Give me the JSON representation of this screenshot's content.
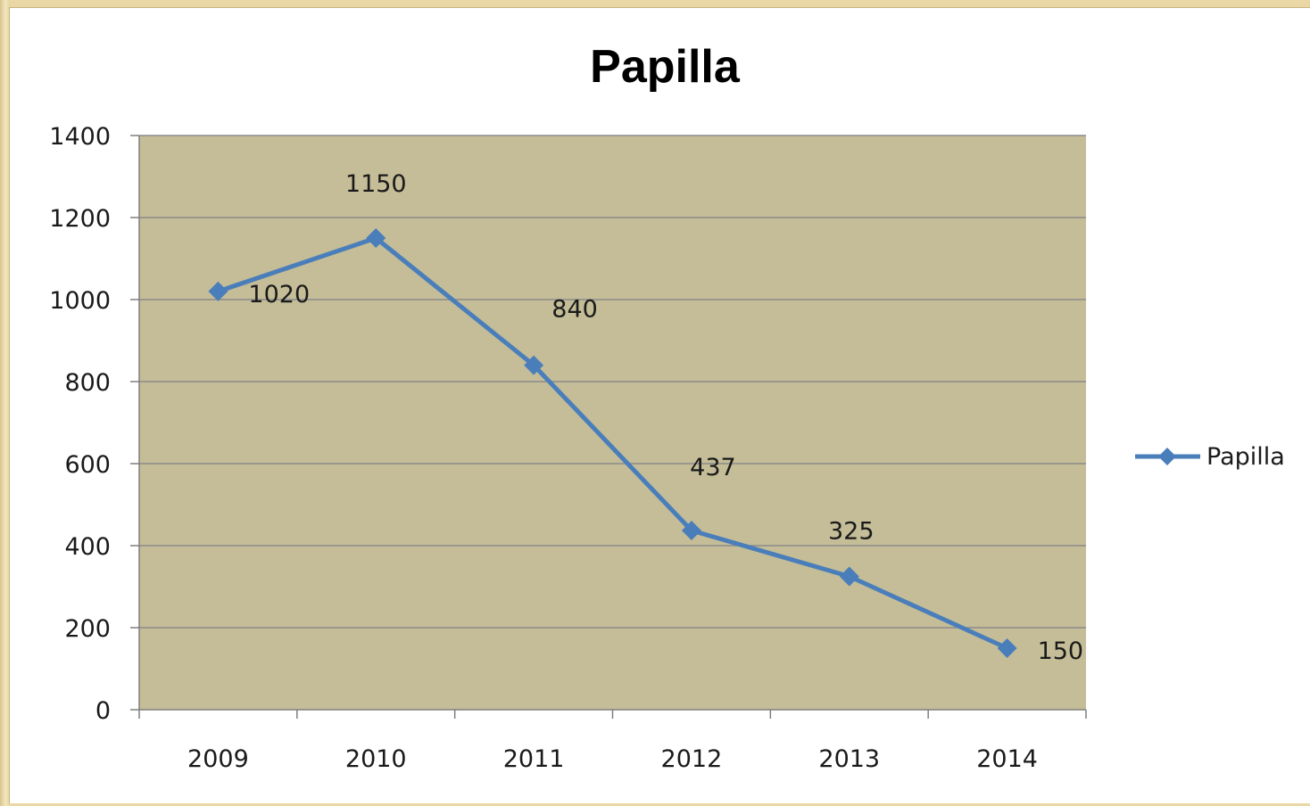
{
  "chart_data": {
    "type": "line",
    "title": "Papilla",
    "xlabel": "",
    "ylabel": "",
    "categories": [
      "2009",
      "2010",
      "2011",
      "2012",
      "2013",
      "2014"
    ],
    "series": [
      {
        "name": "Papilla",
        "values": [
          1020,
          1150,
          840,
          437,
          325,
          150
        ],
        "labels": [
          "1020",
          "1150",
          "840",
          "437",
          "325",
          "150"
        ],
        "color": "#4a7ebb"
      }
    ],
    "ylim": [
      0,
      1400
    ],
    "yticks": [
      0,
      200,
      400,
      600,
      800,
      1000,
      1200,
      1400
    ],
    "ytick_labels": [
      "0",
      "200",
      "400",
      "600",
      "800",
      "1000",
      "1200",
      "1400"
    ],
    "grid": true,
    "legend": "right",
    "plot_background": "#c4bd97",
    "gridline_color": "#8c8c8c"
  }
}
